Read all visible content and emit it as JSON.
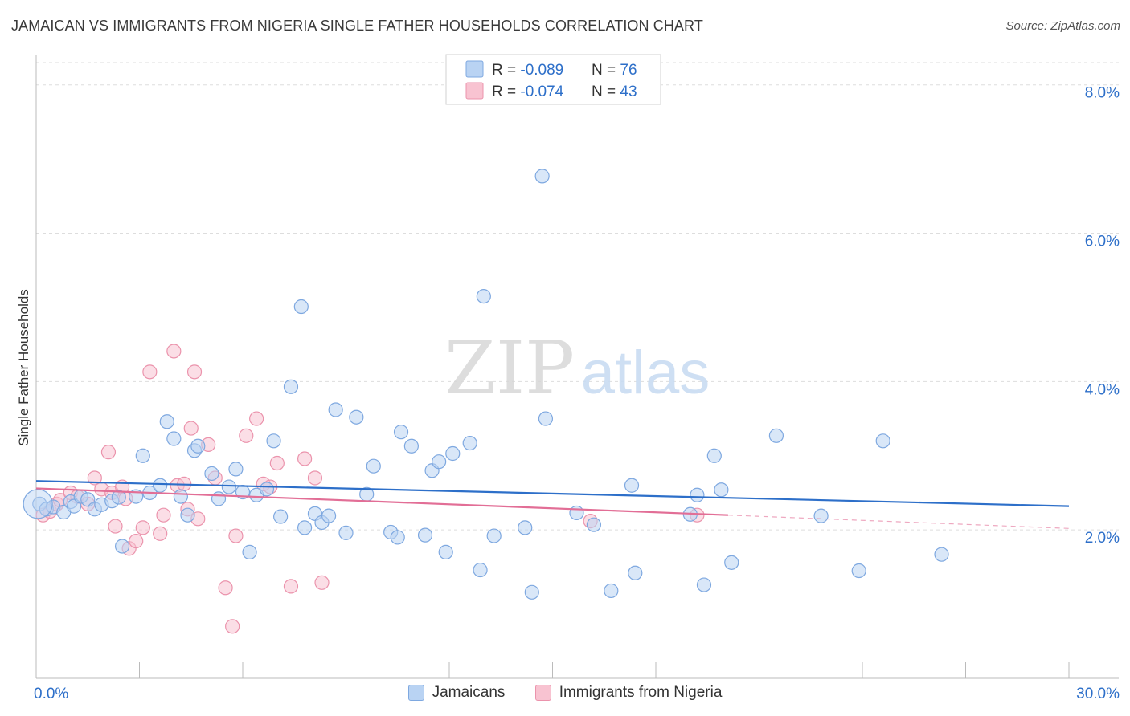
{
  "header": {
    "title": "JAMAICAN VS IMMIGRANTS FROM NIGERIA SINGLE FATHER HOUSEHOLDS CORRELATION CHART",
    "source": "Source: ZipAtlas.com"
  },
  "watermark": {
    "zip": "ZIP",
    "atlas": "atlas"
  },
  "chart_data": {
    "type": "scatter",
    "ylabel": "Single Father Households",
    "xlim": [
      0,
      30
    ],
    "ylim": [
      0,
      8.3
    ],
    "x_tick_labels": [
      {
        "value": 0,
        "label": "0.0%"
      },
      {
        "value": 30,
        "label": "30.0%"
      }
    ],
    "y_tick_labels": [
      {
        "value": 2,
        "label": "2.0%"
      },
      {
        "value": 4,
        "label": "4.0%"
      },
      {
        "value": 6,
        "label": "6.0%"
      },
      {
        "value": 8,
        "label": "8.0%"
      }
    ],
    "colors": {
      "jamaicans_fill": "#b9d3f3",
      "jamaicans_stroke": "#7ea8e0",
      "jamaicans_line": "#2d6fc9",
      "nigeria_fill": "#f8c3d1",
      "nigeria_stroke": "#eb93ac",
      "nigeria_line": "#e26e96",
      "value_text": "#2d6fc9",
      "grid": "#dddddd"
    },
    "legend": {
      "rows": [
        {
          "r_label": "R = ",
          "r_value": "-0.089",
          "n_label": "N = ",
          "n_value": "76"
        },
        {
          "r_label": "R = ",
          "r_value": "-0.074",
          "n_label": "N = ",
          "n_value": "43"
        }
      ],
      "placement": "top-center"
    },
    "series": [
      {
        "name": "Jamaicans",
        "trend": {
          "x": [
            0,
            30
          ],
          "y": [
            2.66,
            2.32
          ]
        },
        "points": [
          [
            0.1,
            2.35
          ],
          [
            0.3,
            2.28
          ],
          [
            0.5,
            2.31
          ],
          [
            0.8,
            2.24
          ],
          [
            1.0,
            2.38
          ],
          [
            1.1,
            2.32
          ],
          [
            1.3,
            2.45
          ],
          [
            1.5,
            2.41
          ],
          [
            1.7,
            2.28
          ],
          [
            1.9,
            2.34
          ],
          [
            2.2,
            2.39
          ],
          [
            2.4,
            2.44
          ],
          [
            2.5,
            1.78
          ],
          [
            2.9,
            2.45
          ],
          [
            3.1,
            3.0
          ],
          [
            3.3,
            2.5
          ],
          [
            3.6,
            2.6
          ],
          [
            3.8,
            3.46
          ],
          [
            4.0,
            3.23
          ],
          [
            4.2,
            2.45
          ],
          [
            4.4,
            2.2
          ],
          [
            4.6,
            3.07
          ],
          [
            4.7,
            3.13
          ],
          [
            5.1,
            2.76
          ],
          [
            5.3,
            2.42
          ],
          [
            5.6,
            2.58
          ],
          [
            5.8,
            2.82
          ],
          [
            6.0,
            2.51
          ],
          [
            6.2,
            1.7
          ],
          [
            6.4,
            2.47
          ],
          [
            6.7,
            2.55
          ],
          [
            6.9,
            3.2
          ],
          [
            7.1,
            2.18
          ],
          [
            7.4,
            3.93
          ],
          [
            7.7,
            5.01
          ],
          [
            7.8,
            2.03
          ],
          [
            8.1,
            2.22
          ],
          [
            8.3,
            2.1
          ],
          [
            8.5,
            2.19
          ],
          [
            8.7,
            3.62
          ],
          [
            9.0,
            1.96
          ],
          [
            9.3,
            3.52
          ],
          [
            9.6,
            2.48
          ],
          [
            9.8,
            2.86
          ],
          [
            10.3,
            1.97
          ],
          [
            10.5,
            1.9
          ],
          [
            10.6,
            3.32
          ],
          [
            10.9,
            3.13
          ],
          [
            11.3,
            1.93
          ],
          [
            11.5,
            2.8
          ],
          [
            11.7,
            2.92
          ],
          [
            11.9,
            1.7
          ],
          [
            12.1,
            3.03
          ],
          [
            12.6,
            3.17
          ],
          [
            12.9,
            1.46
          ],
          [
            13.0,
            5.15
          ],
          [
            13.3,
            1.92
          ],
          [
            14.2,
            2.03
          ],
          [
            14.4,
            1.16
          ],
          [
            14.7,
            6.77
          ],
          [
            14.8,
            3.5
          ],
          [
            15.7,
            2.23
          ],
          [
            16.2,
            2.07
          ],
          [
            16.7,
            1.18
          ],
          [
            17.3,
            2.6
          ],
          [
            17.4,
            1.42
          ],
          [
            19.0,
            2.21
          ],
          [
            19.2,
            2.47
          ],
          [
            19.4,
            1.26
          ],
          [
            19.7,
            3.0
          ],
          [
            19.9,
            2.54
          ],
          [
            20.2,
            1.56
          ],
          [
            21.5,
            3.27
          ],
          [
            22.8,
            2.19
          ],
          [
            23.9,
            1.45
          ],
          [
            24.6,
            3.2
          ],
          [
            26.3,
            1.67
          ]
        ]
      },
      {
        "name": "Immigrants from Nigeria",
        "trend": {
          "x": [
            0,
            20.1
          ],
          "y": [
            2.56,
            2.2
          ]
        },
        "trend_dashed": {
          "x": [
            20.1,
            30
          ],
          "y": [
            2.2,
            2.02
          ]
        },
        "points": [
          [
            0.2,
            2.2
          ],
          [
            0.4,
            2.25
          ],
          [
            0.6,
            2.35
          ],
          [
            0.7,
            2.4
          ],
          [
            1.0,
            2.5
          ],
          [
            1.2,
            2.45
          ],
          [
            1.5,
            2.35
          ],
          [
            1.7,
            2.7
          ],
          [
            1.9,
            2.55
          ],
          [
            2.1,
            3.05
          ],
          [
            2.2,
            2.5
          ],
          [
            2.3,
            2.05
          ],
          [
            2.5,
            2.58
          ],
          [
            2.6,
            2.42
          ],
          [
            2.7,
            1.75
          ],
          [
            2.9,
            1.85
          ],
          [
            3.1,
            2.03
          ],
          [
            3.3,
            4.13
          ],
          [
            3.6,
            1.95
          ],
          [
            3.7,
            2.2
          ],
          [
            4.0,
            4.41
          ],
          [
            4.1,
            2.6
          ],
          [
            4.3,
            2.62
          ],
          [
            4.4,
            2.28
          ],
          [
            4.5,
            3.37
          ],
          [
            4.6,
            4.13
          ],
          [
            4.7,
            2.15
          ],
          [
            5.0,
            3.15
          ],
          [
            5.2,
            2.7
          ],
          [
            5.5,
            1.22
          ],
          [
            5.7,
            0.7
          ],
          [
            5.8,
            1.92
          ],
          [
            6.1,
            3.27
          ],
          [
            6.4,
            3.5
          ],
          [
            6.6,
            2.62
          ],
          [
            6.8,
            2.58
          ],
          [
            7.0,
            2.9
          ],
          [
            7.4,
            1.24
          ],
          [
            7.8,
            2.96
          ],
          [
            8.1,
            2.7
          ],
          [
            8.3,
            1.29
          ],
          [
            16.1,
            2.12
          ],
          [
            19.2,
            2.2
          ]
        ]
      }
    ]
  },
  "bottom_legend": [
    "Jamaicans",
    "Immigrants from Nigeria"
  ]
}
